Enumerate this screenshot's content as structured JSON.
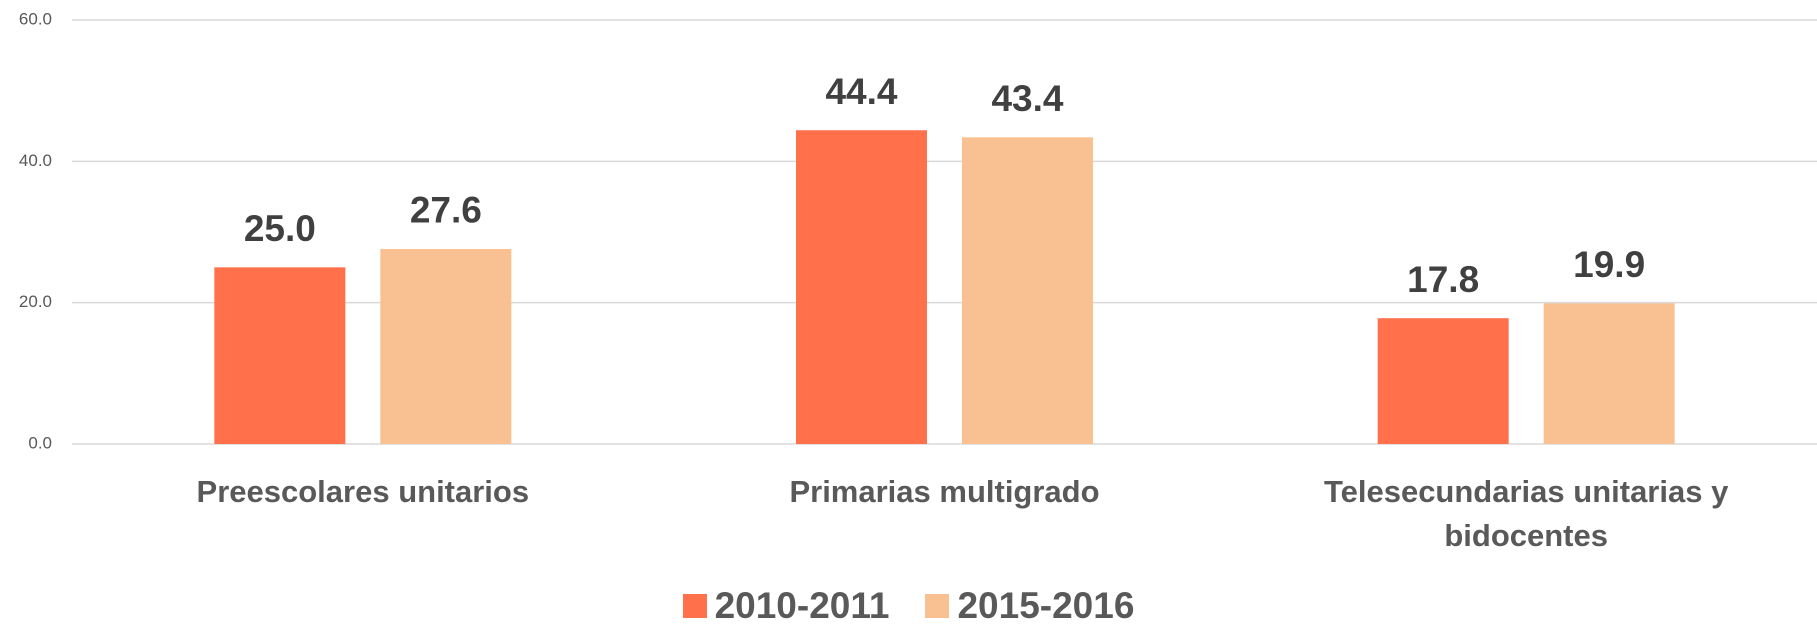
{
  "chart_data": {
    "type": "bar",
    "categories": [
      "Preescolares unitarios",
      "Primarias multigrado",
      "Telesecundarias unitarias y bidocentes"
    ],
    "series": [
      {
        "name": "2010-2011",
        "color": "#ff704b",
        "values": [
          25,
          44.4,
          17.8
        ],
        "value_labels": [
          "25.0",
          "44.4",
          "17.8"
        ]
      },
      {
        "name": "2015-2016",
        "color": "#f9c091",
        "values": [
          27.6,
          43.4,
          19.9
        ],
        "value_labels": [
          "27.6",
          "43.4",
          "19.9"
        ]
      }
    ],
    "ylim": [
      0,
      60
    ],
    "yticks": [
      {
        "value": 0,
        "label": "0.0"
      },
      {
        "value": 20,
        "label": "20.0"
      },
      {
        "value": 40,
        "label": "40.0"
      },
      {
        "value": 60,
        "label": "60.0"
      }
    ],
    "grid": true,
    "legend": "bottom"
  }
}
